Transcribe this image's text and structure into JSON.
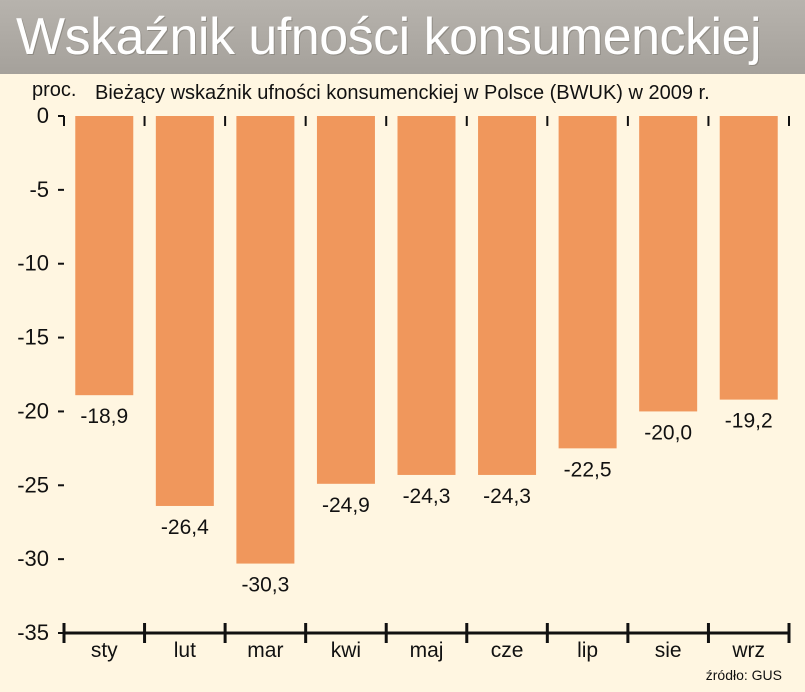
{
  "title": "Wskaźnik ufności konsumenckiej",
  "colors": {
    "background": "#fff6e1",
    "title_bar": "#aaa6a0",
    "bar": "#f0975c",
    "text": "#111111"
  },
  "chart_data": {
    "type": "bar",
    "subtitle": "Bieżący wskaźnik ufności konsumenckiej w Polsce (BWUK) w 2009 r.",
    "unit_label": "proc.",
    "categories": [
      "sty",
      "lut",
      "mar",
      "kwi",
      "maj",
      "cze",
      "lip",
      "sie",
      "wrz"
    ],
    "values": [
      -18.9,
      -26.4,
      -30.3,
      -24.9,
      -24.3,
      -24.3,
      -22.5,
      -20.0,
      -19.2
    ],
    "value_labels": [
      "-18,9",
      "-26,4",
      "-30,3",
      "-24,9",
      "-24,3",
      "-24,3",
      "-22,5",
      "-20,0",
      "-19,2"
    ],
    "ylim": [
      -35,
      0
    ],
    "yticks": [
      0,
      -5,
      -10,
      -15,
      -20,
      -25,
      -30,
      -35
    ],
    "ytick_labels": [
      "0",
      "-5",
      "-10",
      "-15",
      "-20",
      "-25",
      "-30",
      "-35"
    ],
    "grid": false,
    "source": "źródło: GUS"
  }
}
